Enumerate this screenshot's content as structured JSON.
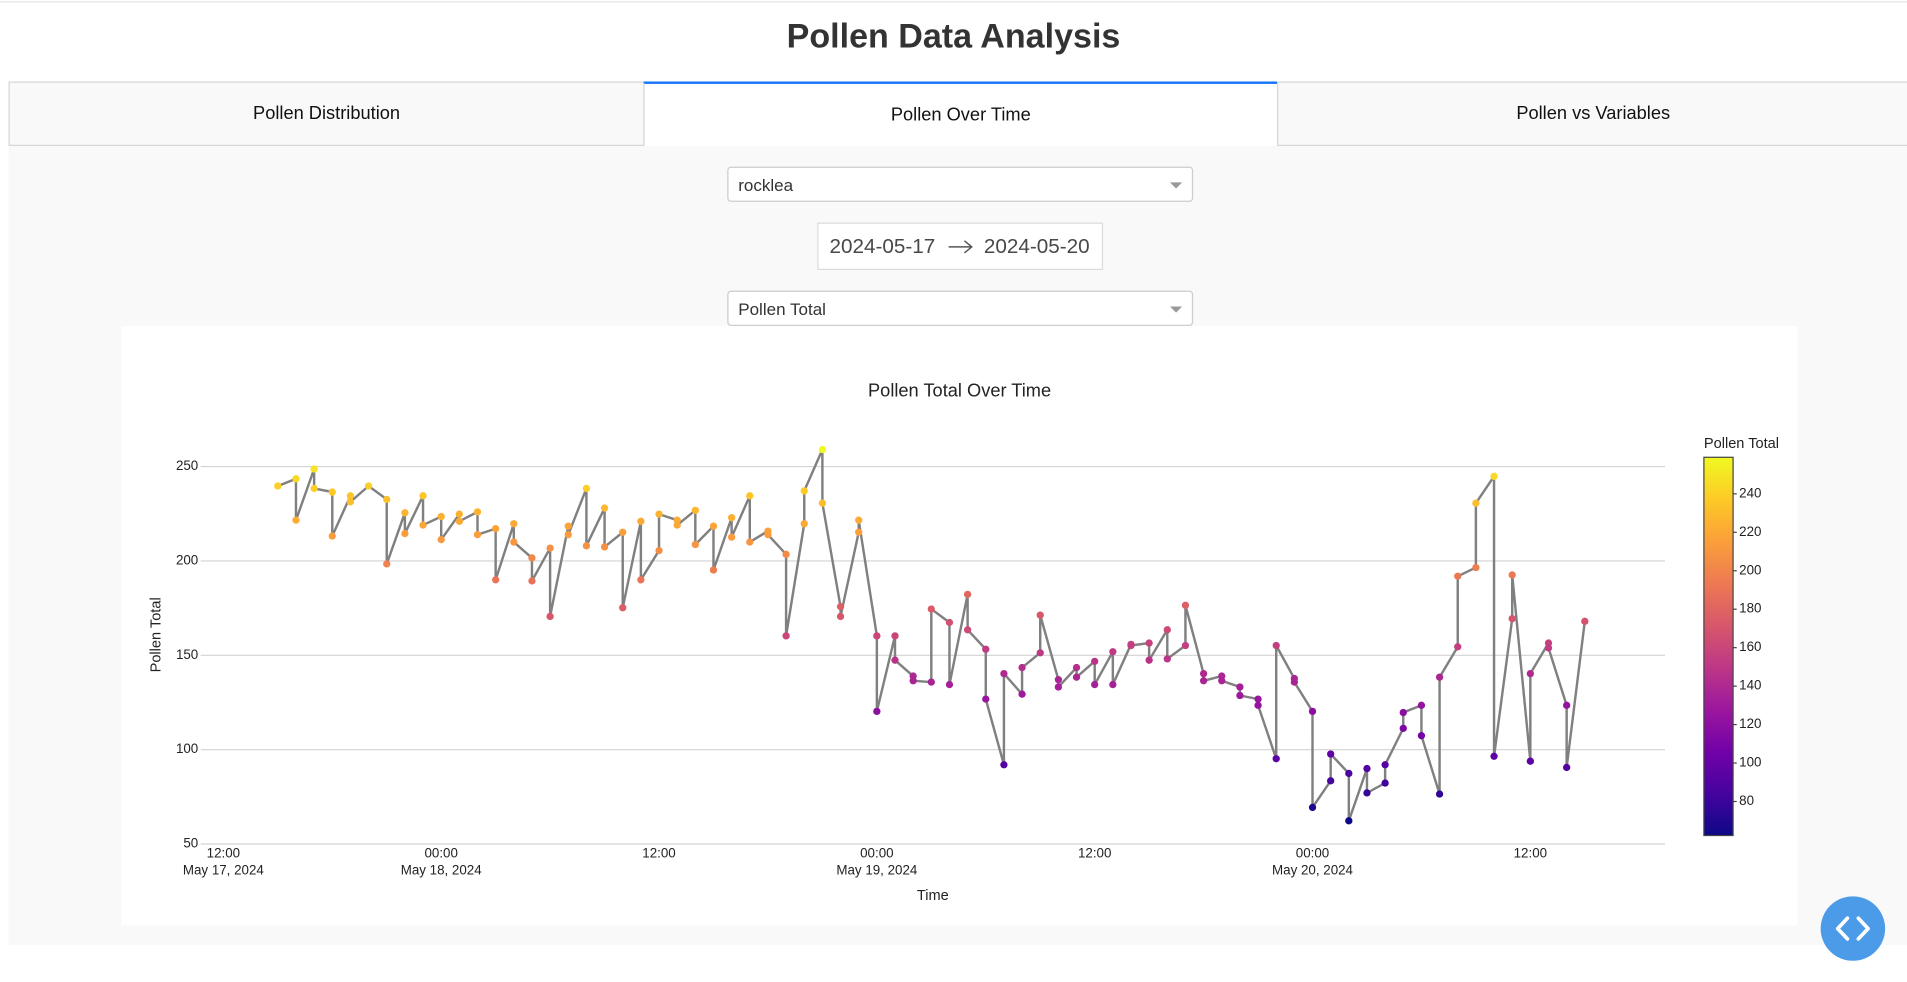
{
  "header": {
    "title": "Pollen Data Analysis"
  },
  "tabs": [
    "Pollen Distribution",
    "Pollen Over Time",
    "Pollen vs Variables"
  ],
  "controls": {
    "location": "rocklea",
    "start_date": "2024-05-17",
    "end_date": "2024-05-20",
    "variable": "Pollen Total"
  },
  "chart_data": {
    "type": "line",
    "title": "Pollen Total Over Time",
    "x_label": "Time",
    "y_label": "Pollen Total",
    "line_color": "#808080",
    "x": [
      "2024-05-17 15:00",
      "2024-05-17 16:00",
      "2024-05-17 16:00",
      "2024-05-17 17:00",
      "2024-05-17 17:00",
      "2024-05-17 18:00",
      "2024-05-17 18:00",
      "2024-05-17 19:00",
      "2024-05-17 19:00",
      "2024-05-17 20:00",
      "2024-05-17 21:00",
      "2024-05-17 21:00",
      "2024-05-17 22:00",
      "2024-05-17 22:00",
      "2024-05-17 23:00",
      "2024-05-17 23:00",
      "2024-05-18 00:00",
      "2024-05-18 00:00",
      "2024-05-18 01:00",
      "2024-05-18 01:00",
      "2024-05-18 02:00",
      "2024-05-18 02:00",
      "2024-05-18 03:00",
      "2024-05-18 03:00",
      "2024-05-18 04:00",
      "2024-05-18 04:00",
      "2024-05-18 05:00",
      "2024-05-18 05:00",
      "2024-05-18 06:00",
      "2024-05-18 06:00",
      "2024-05-18 07:00",
      "2024-05-18 07:00",
      "2024-05-18 08:00",
      "2024-05-18 08:00",
      "2024-05-18 09:00",
      "2024-05-18 09:00",
      "2024-05-18 10:00",
      "2024-05-18 10:00",
      "2024-05-18 11:00",
      "2024-05-18 11:00",
      "2024-05-18 12:00",
      "2024-05-18 12:00",
      "2024-05-18 13:00",
      "2024-05-18 13:00",
      "2024-05-18 14:00",
      "2024-05-18 14:00",
      "2024-05-18 15:00",
      "2024-05-18 15:00",
      "2024-05-18 16:00",
      "2024-05-18 16:00",
      "2024-05-18 17:00",
      "2024-05-18 17:00",
      "2024-05-18 18:00",
      "2024-05-18 18:00",
      "2024-05-18 19:00",
      "2024-05-18 19:00",
      "2024-05-18 20:00",
      "2024-05-18 20:00",
      "2024-05-18 21:00",
      "2024-05-18 21:00",
      "2024-05-18 22:00",
      "2024-05-18 22:00",
      "2024-05-18 23:00",
      "2024-05-18 23:00",
      "2024-05-19 00:00",
      "2024-05-19 00:00",
      "2024-05-19 01:00",
      "2024-05-19 01:00",
      "2024-05-19 02:00",
      "2024-05-19 02:00",
      "2024-05-19 03:00",
      "2024-05-19 03:00",
      "2024-05-19 04:00",
      "2024-05-19 04:00",
      "2024-05-19 05:00",
      "2024-05-19 05:00",
      "2024-05-19 06:00",
      "2024-05-19 06:00",
      "2024-05-19 07:00",
      "2024-05-19 07:00",
      "2024-05-19 08:00",
      "2024-05-19 08:00",
      "2024-05-19 09:00",
      "2024-05-19 09:00",
      "2024-05-19 10:00",
      "2024-05-19 10:00",
      "2024-05-19 11:00",
      "2024-05-19 11:00",
      "2024-05-19 12:00",
      "2024-05-19 12:00",
      "2024-05-19 13:00",
      "2024-05-19 13:00",
      "2024-05-19 14:00",
      "2024-05-19 14:00",
      "2024-05-19 15:00",
      "2024-05-19 15:00",
      "2024-05-19 16:00",
      "2024-05-19 16:00",
      "2024-05-19 17:00",
      "2024-05-19 17:00",
      "2024-05-19 18:00",
      "2024-05-19 18:00",
      "2024-05-19 19:00",
      "2024-05-19 19:00",
      "2024-05-19 20:00",
      "2024-05-19 20:00",
      "2024-05-19 21:00",
      "2024-05-19 21:00",
      "2024-05-19 22:00",
      "2024-05-19 22:00",
      "2024-05-19 23:00",
      "2024-05-19 23:00",
      "2024-05-20 00:00",
      "2024-05-20 00:00",
      "2024-05-20 01:00",
      "2024-05-20 01:00",
      "2024-05-20 02:00",
      "2024-05-20 02:00",
      "2024-05-20 03:00",
      "2024-05-20 03:00",
      "2024-05-20 04:00",
      "2024-05-20 04:00",
      "2024-05-20 05:00",
      "2024-05-20 05:00",
      "2024-05-20 06:00",
      "2024-05-20 06:00",
      "2024-05-20 07:00",
      "2024-05-20 07:00",
      "2024-05-20 08:00",
      "2024-05-20 08:00",
      "2024-05-20 09:00",
      "2024-05-20 09:00",
      "2024-05-20 10:00",
      "2024-05-20 10:00",
      "2024-05-20 11:00",
      "2024-05-20 11:00",
      "2024-05-20 12:00",
      "2024-05-20 12:00",
      "2024-05-20 13:00",
      "2024-05-20 13:00",
      "2024-05-20 14:00",
      "2024-05-20 14:00",
      "2024-05-20 15:00"
    ],
    "values": [
      239.7,
      243.5,
      221.6,
      248.7,
      238.4,
      236.5,
      213.2,
      234.5,
      231.3,
      239.7,
      232.6,
      198.4,
      225.5,
      214.5,
      234.5,
      219,
      223.5,
      211.3,
      224.8,
      221,
      226,
      213.9,
      217.1,
      190,
      219.7,
      210,
      201.6,
      189.4,
      206.8,
      170.6,
      218.4,
      213.9,
      238.4,
      208,
      228,
      207.4,
      215.2,
      175.2,
      221,
      190,
      205.5,
      224.8,
      221.6,
      219,
      226.8,
      208.7,
      218.4,
      195.2,
      222.9,
      212.6,
      234.5,
      210,
      215.8,
      213.9,
      203.5,
      160.3,
      219.7,
      237.1,
      259,
      230.6,
      175.8,
      170.6,
      215.2,
      221.6,
      160.3,
      120.3,
      160.3,
      147.4,
      139,
      136.5,
      135.8,
      174.5,
      167.4,
      134.5,
      182.3,
      163.5,
      153.2,
      126.8,
      92,
      140.3,
      129.4,
      143.5,
      151.3,
      171.3,
      137.1,
      133.2,
      143.5,
      138.4,
      146.8,
      134.5,
      151.9,
      134.5,
      155.8,
      155.2,
      156.5,
      147.4,
      163.5,
      148.1,
      155.2,
      176.5,
      140.3,
      136.5,
      139,
      136.5,
      133.2,
      128.7,
      126.8,
      123.5,
      95.2,
      155.2,
      137.7,
      135.8,
      120.3,
      69.4,
      83.5,
      97.7,
      87.4,
      62.3,
      90,
      77.1,
      82.3,
      92,
      111.3,
      119.7,
      123.5,
      107.4,
      76.5,
      138.4,
      154.5,
      191.9,
      196.5,
      230.6,
      244.8,
      96.5,
      169.4,
      192.6,
      93.9,
      140.3,
      156.5,
      153.9,
      123.5,
      90.6,
      168
    ],
    "xlim": [
      "2024-05-17 10:45",
      "2024-05-20 19:25"
    ],
    "xticks": [
      {
        "value": "2024-05-17 12:00",
        "label": "12:00",
        "date_label": "May 17, 2024"
      },
      {
        "value": "2024-05-18 00:00",
        "label": "00:00",
        "date_label": "May 18, 2024"
      },
      {
        "value": "2024-05-18 12:00",
        "label": "12:00"
      },
      {
        "value": "2024-05-19 00:00",
        "label": "00:00",
        "date_label": "May 19, 2024"
      },
      {
        "value": "2024-05-19 12:00",
        "label": "12:00"
      },
      {
        "value": "2024-05-20 00:00",
        "label": "00:00",
        "date_label": "May 20, 2024"
      },
      {
        "value": "2024-05-20 12:00",
        "label": "12:00"
      }
    ],
    "ylim": [
      50,
      262
    ],
    "yticks": [
      50,
      100,
      150,
      200,
      250
    ],
    "grid": true,
    "colorbar": {
      "title": "Pollen Total",
      "ticks": [
        80,
        100,
        120,
        140,
        160,
        180,
        200,
        220,
        240
      ],
      "colorscale": [
        "#0d0887",
        "#46039f",
        "#7201a8",
        "#9c179e",
        "#bd3786",
        "#d8576b",
        "#ed7953",
        "#fb9f3a",
        "#fdca26",
        "#f0f921"
      ]
    }
  }
}
